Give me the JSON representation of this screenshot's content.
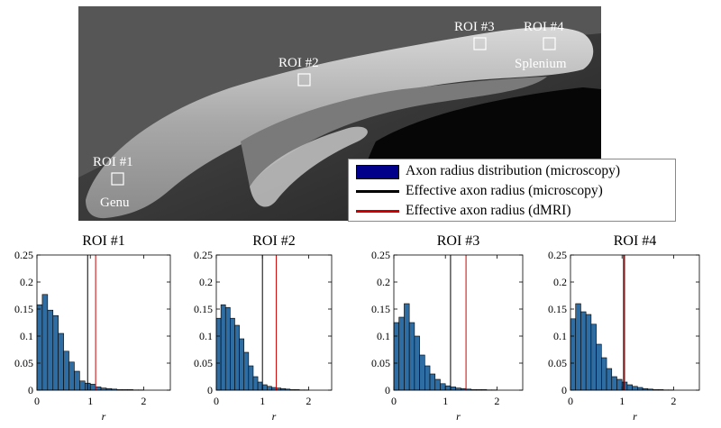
{
  "image": {
    "roi_labels": [
      "ROI #1",
      "ROI #2",
      "ROI #3",
      "ROI #4"
    ],
    "region_labels": [
      "Genu",
      "Splenium"
    ]
  },
  "legend": {
    "items": [
      {
        "label": "Axon radius distribution (microscopy)",
        "kind": "bar",
        "color": "#00008b"
      },
      {
        "label": "Effective axon radius (microscopy)",
        "kind": "line",
        "color": "#000000"
      },
      {
        "label": "Effective axon radius (dMRI)",
        "kind": "line",
        "color": "#cc0000"
      }
    ]
  },
  "chart_data": [
    {
      "type": "bar",
      "title": "ROI #1",
      "xlabel": "r",
      "ylabel": "",
      "xlim": [
        0,
        2.5
      ],
      "ylim": [
        0,
        0.25
      ],
      "xticks": [
        "0",
        "1",
        "2"
      ],
      "yticks": [
        "0",
        "0.05",
        "0.1",
        "0.15",
        "0.2",
        "0.25"
      ],
      "bin_width": 0.1,
      "bar_color": "#2e6da4",
      "x": [
        0.05,
        0.15,
        0.25,
        0.35,
        0.45,
        0.55,
        0.65,
        0.75,
        0.85,
        0.95,
        1.05,
        1.15,
        1.25,
        1.35,
        1.45,
        1.55,
        1.65,
        1.75,
        1.85,
        1.95
      ],
      "values": [
        0.158,
        0.177,
        0.148,
        0.138,
        0.105,
        0.072,
        0.052,
        0.035,
        0.017,
        0.013,
        0.011,
        0.006,
        0.004,
        0.003,
        0.002,
        0.001,
        0.001,
        0.001,
        0.0005,
        0.0005
      ],
      "effective_radius_microscopy": 0.95,
      "effective_radius_dmri": 1.1
    },
    {
      "type": "bar",
      "title": "ROI #2",
      "xlabel": "r",
      "ylabel": "",
      "xlim": [
        0,
        2.5
      ],
      "ylim": [
        0,
        0.25
      ],
      "xticks": [
        "0",
        "1",
        "2"
      ],
      "yticks": [
        "0",
        "0.05",
        "0.1",
        "0.15",
        "0.2",
        "0.25"
      ],
      "bin_width": 0.1,
      "bar_color": "#2e6da4",
      "x": [
        0.05,
        0.15,
        0.25,
        0.35,
        0.45,
        0.55,
        0.65,
        0.75,
        0.85,
        0.95,
        1.05,
        1.15,
        1.25,
        1.35,
        1.45,
        1.55,
        1.65,
        1.75,
        1.85,
        1.95
      ],
      "values": [
        0.133,
        0.158,
        0.153,
        0.133,
        0.12,
        0.095,
        0.07,
        0.045,
        0.025,
        0.015,
        0.01,
        0.007,
        0.005,
        0.004,
        0.003,
        0.002,
        0.001,
        0.001,
        0.0005,
        0.0005
      ],
      "effective_radius_microscopy": 1.0,
      "effective_radius_dmri": 1.3
    },
    {
      "type": "bar",
      "title": "ROI #3",
      "xlabel": "r",
      "ylabel": "",
      "xlim": [
        0,
        2.5
      ],
      "ylim": [
        0,
        0.25
      ],
      "xticks": [
        "0",
        "1",
        "2"
      ],
      "yticks": [
        "0",
        "0.05",
        "0.1",
        "0.15",
        "0.2",
        "0.25"
      ],
      "bin_width": 0.1,
      "bar_color": "#2e6da4",
      "x": [
        0.05,
        0.15,
        0.25,
        0.35,
        0.45,
        0.55,
        0.65,
        0.75,
        0.85,
        0.95,
        1.05,
        1.15,
        1.25,
        1.35,
        1.45,
        1.55,
        1.65,
        1.75,
        1.85,
        1.95
      ],
      "values": [
        0.125,
        0.135,
        0.16,
        0.125,
        0.1,
        0.065,
        0.045,
        0.03,
        0.02,
        0.012,
        0.008,
        0.006,
        0.004,
        0.003,
        0.002,
        0.001,
        0.001,
        0.001,
        0.0005,
        0.0005
      ],
      "effective_radius_microscopy": 1.1,
      "effective_radius_dmri": 1.4
    },
    {
      "type": "bar",
      "title": "ROI #4",
      "xlabel": "r",
      "ylabel": "",
      "xlim": [
        0,
        2.5
      ],
      "ylim": [
        0,
        0.25
      ],
      "xticks": [
        "0",
        "1",
        "2"
      ],
      "yticks": [
        "0",
        "0.05",
        "0.1",
        "0.15",
        "0.2",
        "0.25"
      ],
      "bin_width": 0.1,
      "bar_color": "#2e6da4",
      "x": [
        0.05,
        0.15,
        0.25,
        0.35,
        0.45,
        0.55,
        0.65,
        0.75,
        0.85,
        0.95,
        1.05,
        1.15,
        1.25,
        1.35,
        1.45,
        1.55,
        1.65,
        1.75,
        1.85,
        1.95
      ],
      "values": [
        0.132,
        0.16,
        0.145,
        0.14,
        0.122,
        0.085,
        0.06,
        0.04,
        0.025,
        0.02,
        0.015,
        0.01,
        0.007,
        0.005,
        0.003,
        0.002,
        0.001,
        0.001,
        0.0005,
        0.0005
      ],
      "effective_radius_microscopy": 1.03,
      "effective_radius_dmri": 1.05
    }
  ]
}
